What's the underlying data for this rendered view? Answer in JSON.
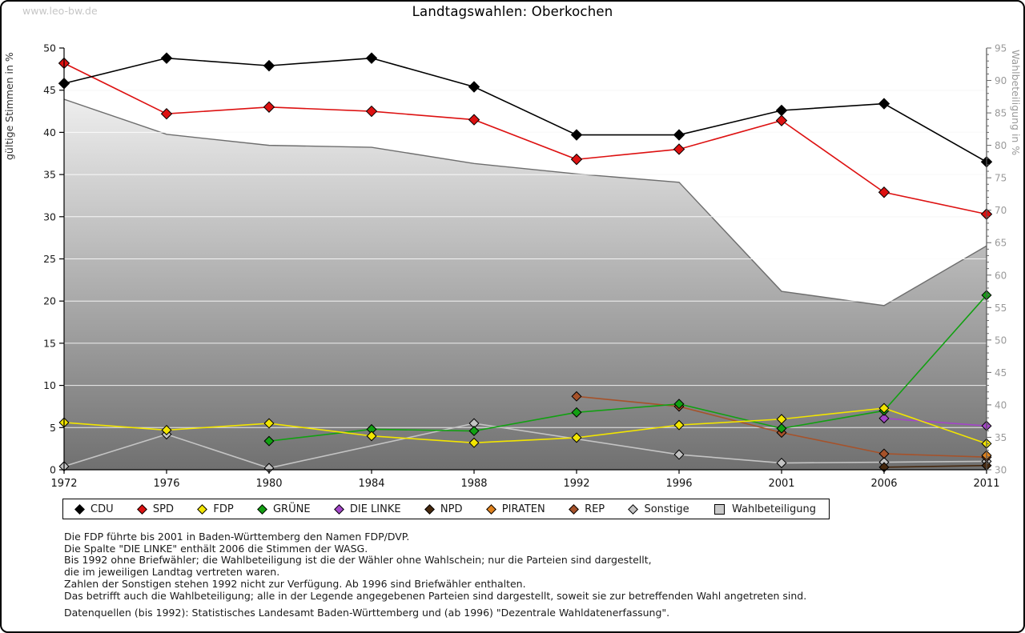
{
  "page": {
    "watermark": "www.leo-bw.de",
    "title": "Landtagswahlen: Oberkochen"
  },
  "chart_data": {
    "type": "line",
    "title": "Landtagswahlen: Oberkochen",
    "x_categories": [
      "1972",
      "1976",
      "1980",
      "1984",
      "1988",
      "1992",
      "1996",
      "2001",
      "2006",
      "2011"
    ],
    "ylabel_left": "gültige Stimmen in %",
    "ylabel_right": "Wahlbeteiligung in %",
    "ylim_left": [
      0,
      50
    ],
    "ylim_right": [
      30,
      95
    ],
    "left_ticks": [
      0,
      5,
      10,
      15,
      20,
      25,
      30,
      35,
      40,
      45,
      50
    ],
    "right_major_ticks": [
      30,
      35,
      40,
      45,
      50,
      55,
      60,
      65,
      70,
      75,
      80,
      85,
      90,
      95
    ],
    "grid": "horizontal lines every 5 (left scale)",
    "legend_position": "bottom box",
    "series": [
      {
        "name": "CDU",
        "color": "#000000",
        "axis": "left",
        "marker": "diamond",
        "values": [
          45.8,
          48.8,
          47.9,
          48.8,
          45.4,
          39.7,
          39.7,
          42.6,
          43.4,
          36.5
        ]
      },
      {
        "name": "SPD",
        "color": "#dd1111",
        "axis": "left",
        "marker": "diamond",
        "values": [
          48.2,
          42.2,
          43.0,
          42.5,
          41.5,
          36.8,
          38.0,
          41.4,
          32.9,
          30.3
        ]
      },
      {
        "name": "FDP",
        "color": "#f2e500",
        "axis": "left",
        "marker": "diamond",
        "values": [
          5.6,
          4.7,
          5.5,
          4.0,
          3.2,
          3.8,
          5.3,
          6.0,
          7.3,
          3.1
        ]
      },
      {
        "name": "GRÜNE",
        "color": "#12a012",
        "axis": "left",
        "marker": "diamond",
        "values": [
          null,
          null,
          3.4,
          4.8,
          4.6,
          6.8,
          7.8,
          4.9,
          7.0,
          20.7
        ]
      },
      {
        "name": "DIE LINKE",
        "color": "#a346c8",
        "axis": "left",
        "marker": "diamond",
        "values": [
          null,
          null,
          null,
          null,
          null,
          null,
          null,
          null,
          6.1,
          5.2
        ]
      },
      {
        "name": "NPD",
        "color": "#46280e",
        "axis": "left",
        "marker": "diamond",
        "values": [
          null,
          null,
          null,
          null,
          null,
          null,
          null,
          null,
          0.3,
          0.5
        ]
      },
      {
        "name": "PIRATEN",
        "color": "#e0821e",
        "axis": "left",
        "marker": "diamond",
        "values": [
          null,
          null,
          null,
          null,
          null,
          null,
          null,
          null,
          null,
          1.7
        ]
      },
      {
        "name": "REP",
        "color": "#a6522a",
        "axis": "left",
        "marker": "diamond",
        "values": [
          null,
          null,
          null,
          null,
          null,
          8.7,
          7.5,
          4.4,
          1.9,
          1.5
        ]
      },
      {
        "name": "Sonstige",
        "color": "#c4c4c4",
        "axis": "left",
        "marker": "diamond",
        "values": [
          0.4,
          4.2,
          0.2,
          null,
          5.5,
          null,
          1.8,
          0.8,
          0.9,
          1.0
        ]
      },
      {
        "name": "Wahlbeteiligung",
        "color": "#8a8a8a",
        "axis": "right",
        "marker": "square",
        "render": "area",
        "values": [
          87.1,
          81.7,
          80.0,
          79.7,
          77.2,
          75.6,
          74.3,
          57.5,
          55.3,
          64.5
        ]
      }
    ]
  },
  "notes": [
    "Die FDP führte bis 2001 in Baden-Württemberg den Namen FDP/DVP.",
    "Die Spalte \"DIE LINKE\" enthält 2006 die Stimmen der WASG.",
    "Bis 1992 ohne Briefwähler; die Wahlbeteiligung ist die der Wähler ohne Wahlschein; nur die Parteien sind dargestellt,",
    "die im jeweiligen Landtag vertreten waren.",
    "Zahlen der Sonstigen stehen 1992 nicht zur Verfügung. Ab 1996 sind Briefwähler enthalten.",
    "Das betrifft auch die Wahlbeteiligung; alle in der Legende angegebenen Parteien sind dargestellt, soweit sie zur betreffenden Wahl angetreten sind.",
    "",
    "Datenquellen (bis 1992): Statistisches Landesamt Baden-Württemberg und (ab 1996) \"Dezentrale Wahldatenerfassung\"."
  ]
}
